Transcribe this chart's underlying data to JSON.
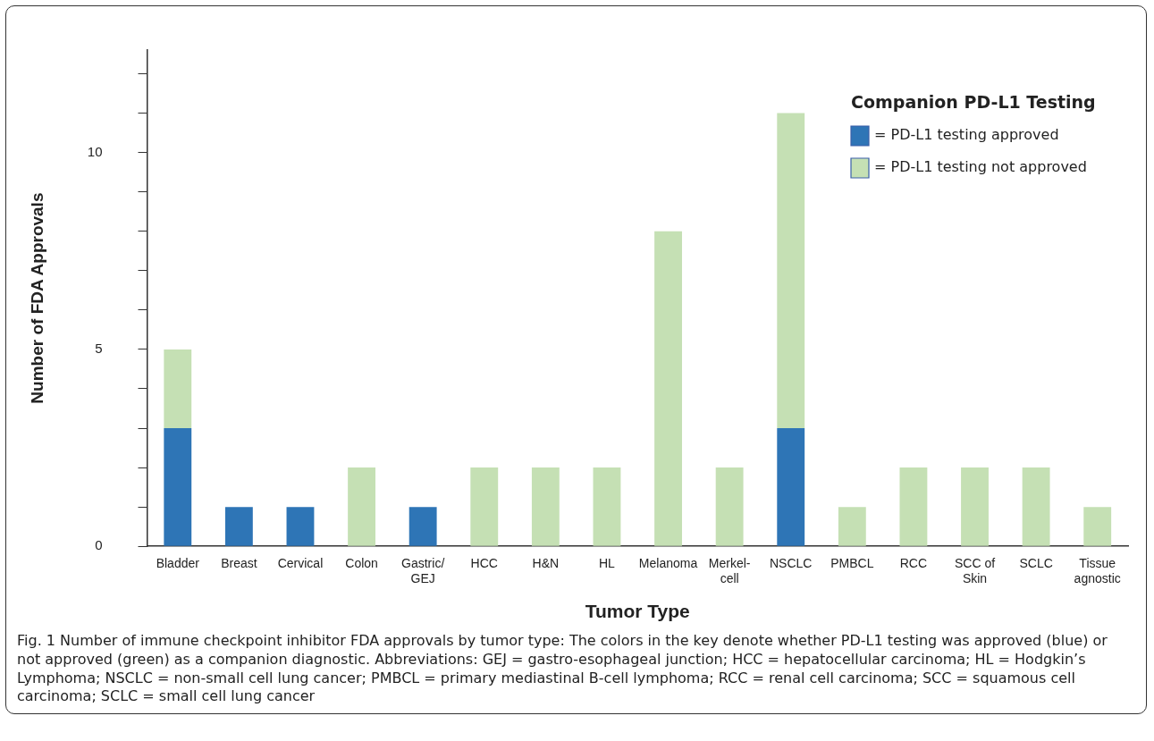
{
  "chart_data": {
    "type": "bar",
    "stacked": true,
    "xlabel": "Tumor Type",
    "ylabel": "Number of FDA Approvals",
    "categories": [
      "Bladder",
      "Breast",
      "Cervical",
      "Colon",
      "Gastric/GEJ",
      "HCC",
      "H&N",
      "HL",
      "Melanoma",
      "Merkel-cell",
      "NSCLC",
      "PMBCL",
      "RCC",
      "SCC of Skin",
      "SCLC",
      "Tissue agnostic"
    ],
    "series": [
      {
        "name": "= PD-L1 testing approved",
        "color": "#2e75b6",
        "values": [
          3,
          1,
          1,
          0,
          1,
          0,
          0,
          0,
          0,
          0,
          3,
          0,
          0,
          0,
          0,
          0
        ]
      },
      {
        "name": "= PD-L1 testing not approved",
        "color": "#c5e0b4",
        "values": [
          2,
          0,
          0,
          2,
          0,
          2,
          2,
          2,
          8,
          2,
          8,
          1,
          2,
          2,
          2,
          1
        ]
      }
    ],
    "ylim": [
      0,
      12.6
    ],
    "yticks": [
      0,
      {
        "value": 1,
        "label": null
      },
      {
        "value": 2,
        "label": null
      },
      {
        "value": 3,
        "label": null
      },
      {
        "value": 4,
        "label": null
      },
      5,
      {
        "value": 6,
        "label": null
      },
      {
        "value": 7,
        "label": null
      },
      {
        "value": 8,
        "label": null
      },
      {
        "value": 9,
        "label": null
      },
      10,
      {
        "value": 11,
        "label": null
      },
      {
        "value": 12,
        "label": null
      }
    ],
    "grid": false,
    "legend": "top right",
    "legend_title": "Companion PD-L1 Testing",
    "annotations": [
      "Fig. 1 Number of immune checkpoint inhibitor FDA approvals by tumor type: The colors in the key denote whether PD-L1 testing was approved (blue) or not approved (green) as a companion diagnostic. Abbreviations: GEJ = gastro-esophageal junction; HCC = hepatocellular carcinoma; HL = Hodgkin’s Lymphoma; NSCLC = non-small cell lung cancer; PMBCL = primary mediastinal B-cell lymphoma; RCC = renal cell carcinoma; SCC = squamous cell carcinoma; SCLC = small cell lung cancer"
    ]
  }
}
